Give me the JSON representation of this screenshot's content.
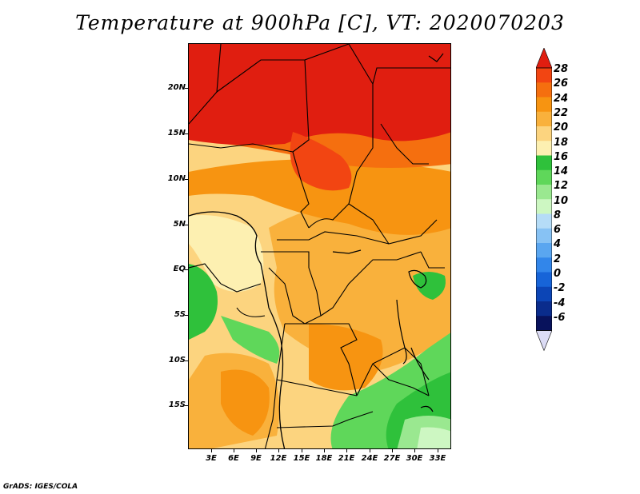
{
  "title": "Temperature at 900hPa [C], VT: 2020070203",
  "footer": "GrADS: IGES/COLA",
  "map": {
    "lat_labels": [
      "20N",
      "15N",
      "10N",
      "5N",
      "EQ",
      "5S",
      "10S",
      "15S"
    ],
    "lon_labels": [
      "3E",
      "6E",
      "9E",
      "12E",
      "15E",
      "18E",
      "21E",
      "24E",
      "27E",
      "30E",
      "33E"
    ]
  },
  "colorbar": {
    "levels": [
      "28",
      "26",
      "24",
      "22",
      "20",
      "18",
      "16",
      "14",
      "12",
      "10",
      "8",
      "6",
      "4",
      "2",
      "0",
      "-2",
      "-4",
      "-6"
    ],
    "colors": [
      "#e01e10",
      "#f24512",
      "#f56f0f",
      "#f79411",
      "#f9b13c",
      "#fcd47f",
      "#fdf0b1",
      "#2fc13b",
      "#5fd75a",
      "#9ae890",
      "#cdf7c2",
      "#b5dcf7",
      "#87c2f4",
      "#5aa6f0",
      "#3286ea",
      "#1764d8",
      "#0c45b6",
      "#0a2c8c",
      "#08125c",
      "#dcdcf5"
    ]
  }
}
